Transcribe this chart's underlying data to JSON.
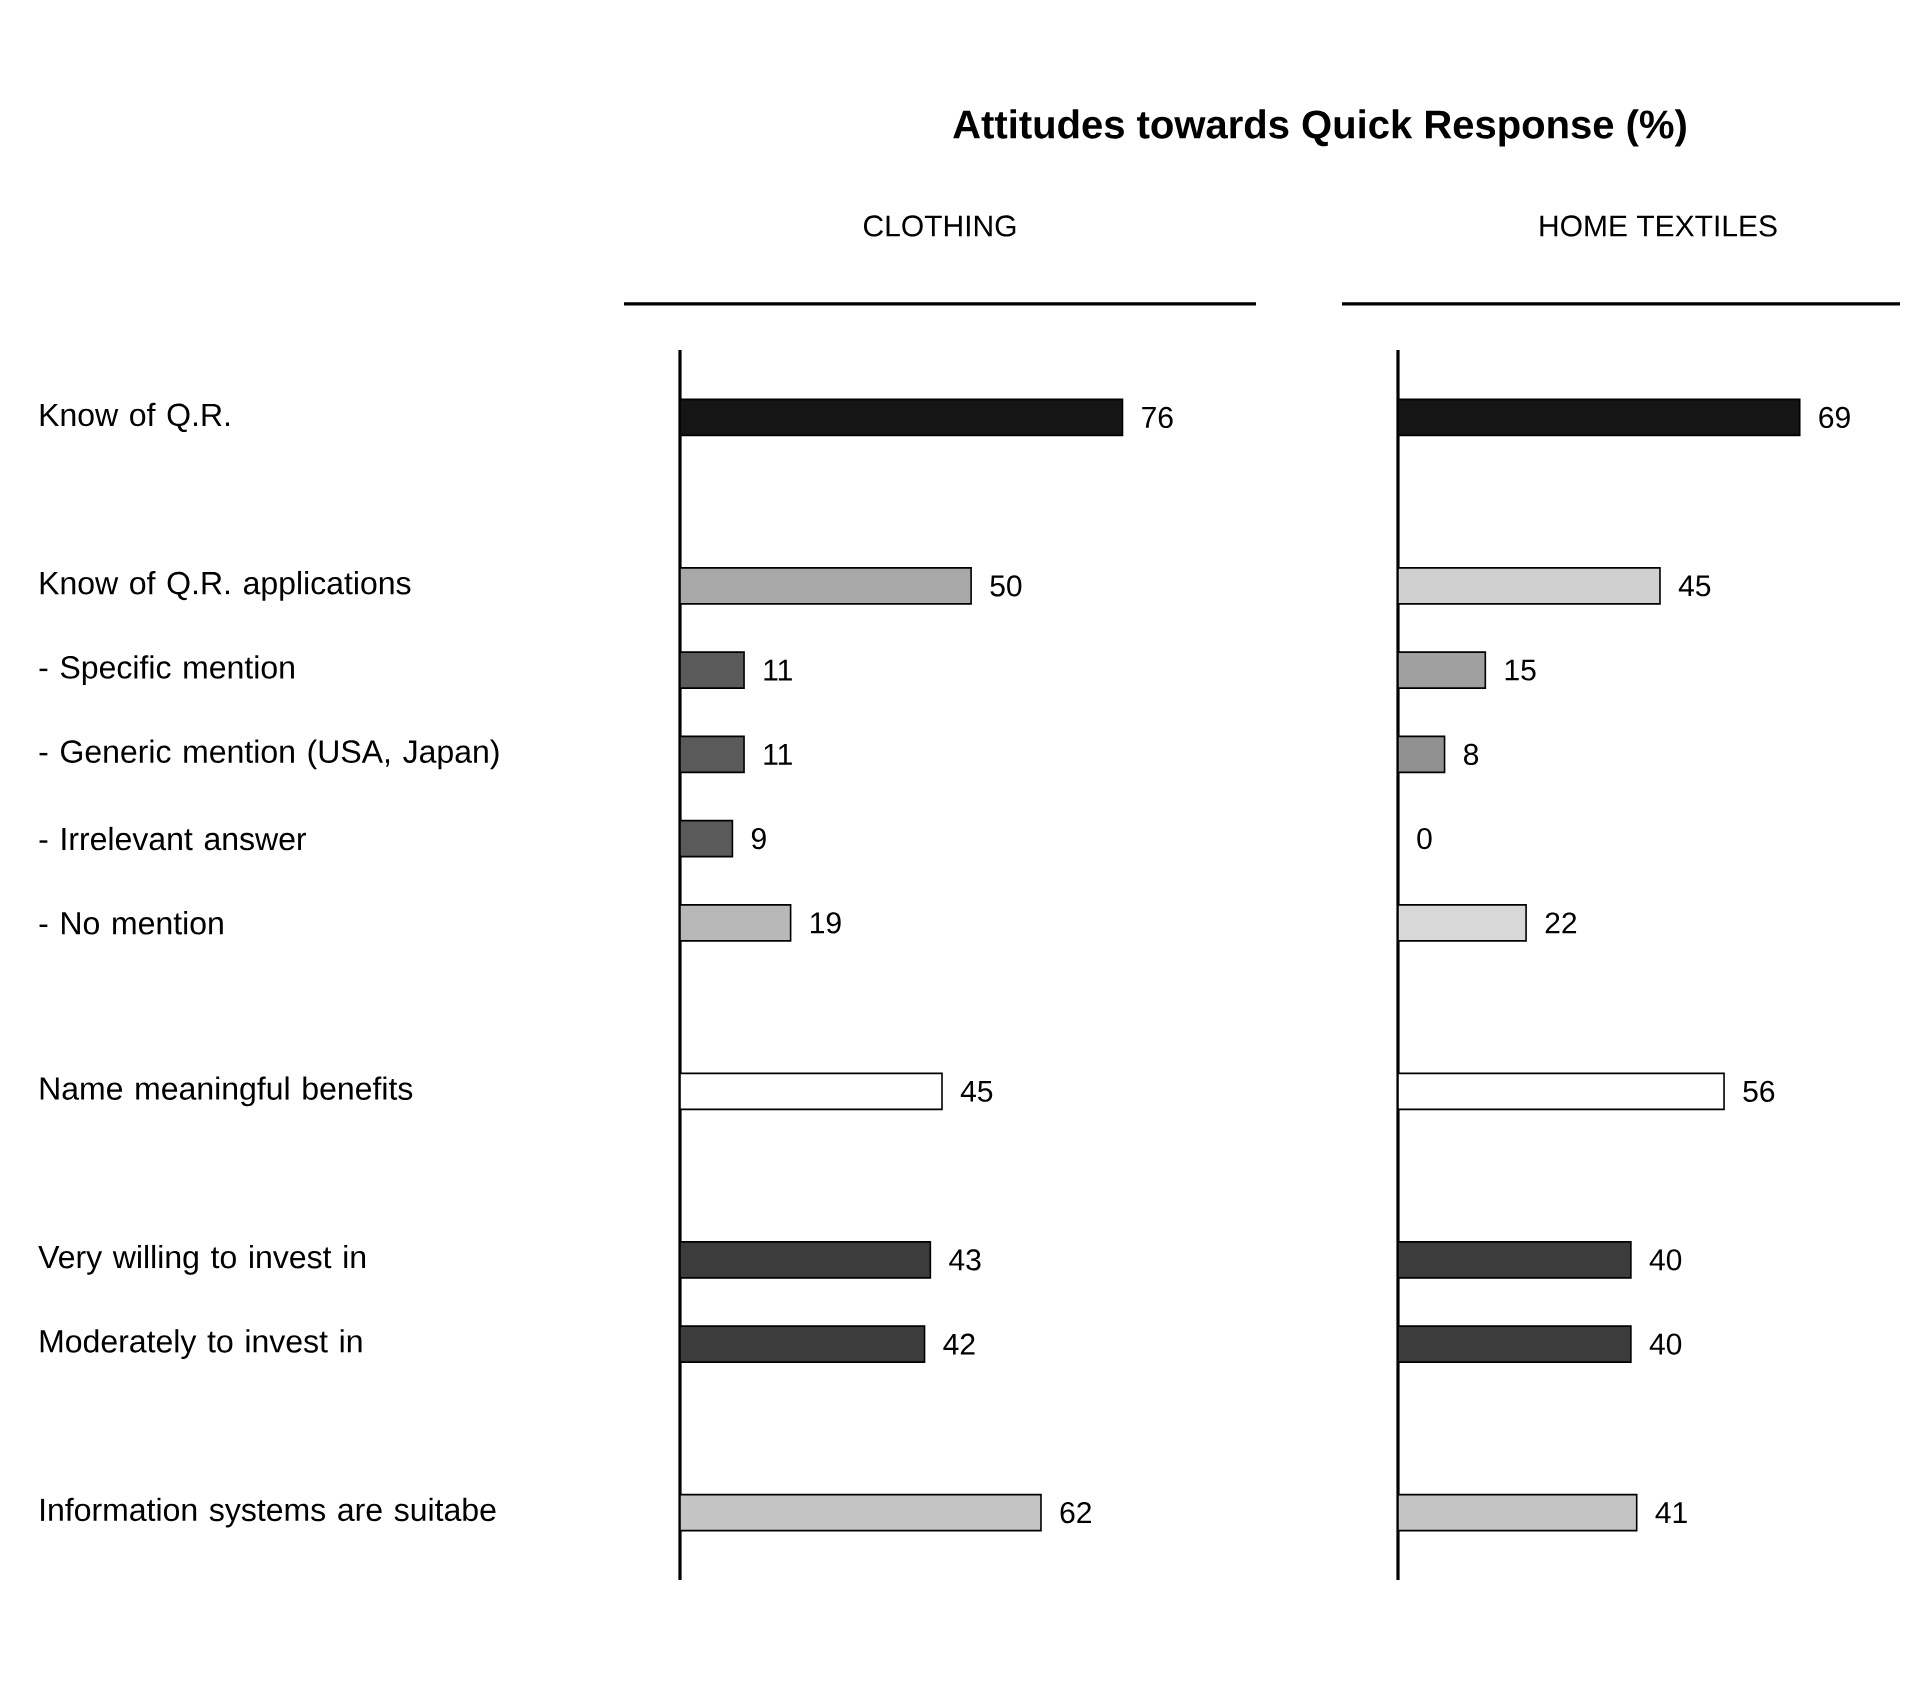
{
  "chart_data": [
    {
      "type": "bar",
      "orientation": "horizontal",
      "title": "CLOTHING",
      "annotations": [
        "Attitudes towards Quick Response (%)"
      ],
      "categories": [
        "Know of Q.R.",
        null,
        "Know of Q.R. applications",
        "-  Specific mention",
        "-  Generic mention (USA, Japan)",
        "-  Irrelevant answer",
        "-  No mention",
        null,
        "Name meaningful benefits",
        null,
        "Very willing to invest in",
        "Moderately to invest in",
        null,
        "Information systems are suitabe"
      ],
      "values": [
        76,
        null,
        50,
        11,
        11,
        9,
        19,
        null,
        45,
        null,
        43,
        42,
        null,
        62
      ],
      "colors": [
        "#151515",
        null,
        "#a8a8a8",
        "#5a5a5a",
        "#5a5a5a",
        "#5a5a5a",
        "#b8b8b8",
        null,
        "#ffffff",
        null,
        "#3c3c3c",
        "#3c3c3c",
        null,
        "#c4c4c4"
      ],
      "data_labels": true
    },
    {
      "type": "bar",
      "orientation": "horizontal",
      "title": "HOME TEXTILES",
      "categories": [
        null,
        null,
        null,
        null,
        null,
        null,
        null,
        null,
        null,
        null,
        null,
        null,
        null,
        null
      ],
      "values": [
        69,
        null,
        45,
        15,
        8,
        0,
        22,
        null,
        56,
        null,
        40,
        40,
        null,
        41
      ],
      "colors": [
        "#151515",
        null,
        "#d0d0d0",
        "#a0a0a0",
        "#909090",
        null,
        "#d8d8d8",
        null,
        "#ffffff",
        null,
        "#3c3c3c",
        "#3c3c3c",
        null,
        "#c4c4c4"
      ],
      "data_labels": true
    }
  ]
}
